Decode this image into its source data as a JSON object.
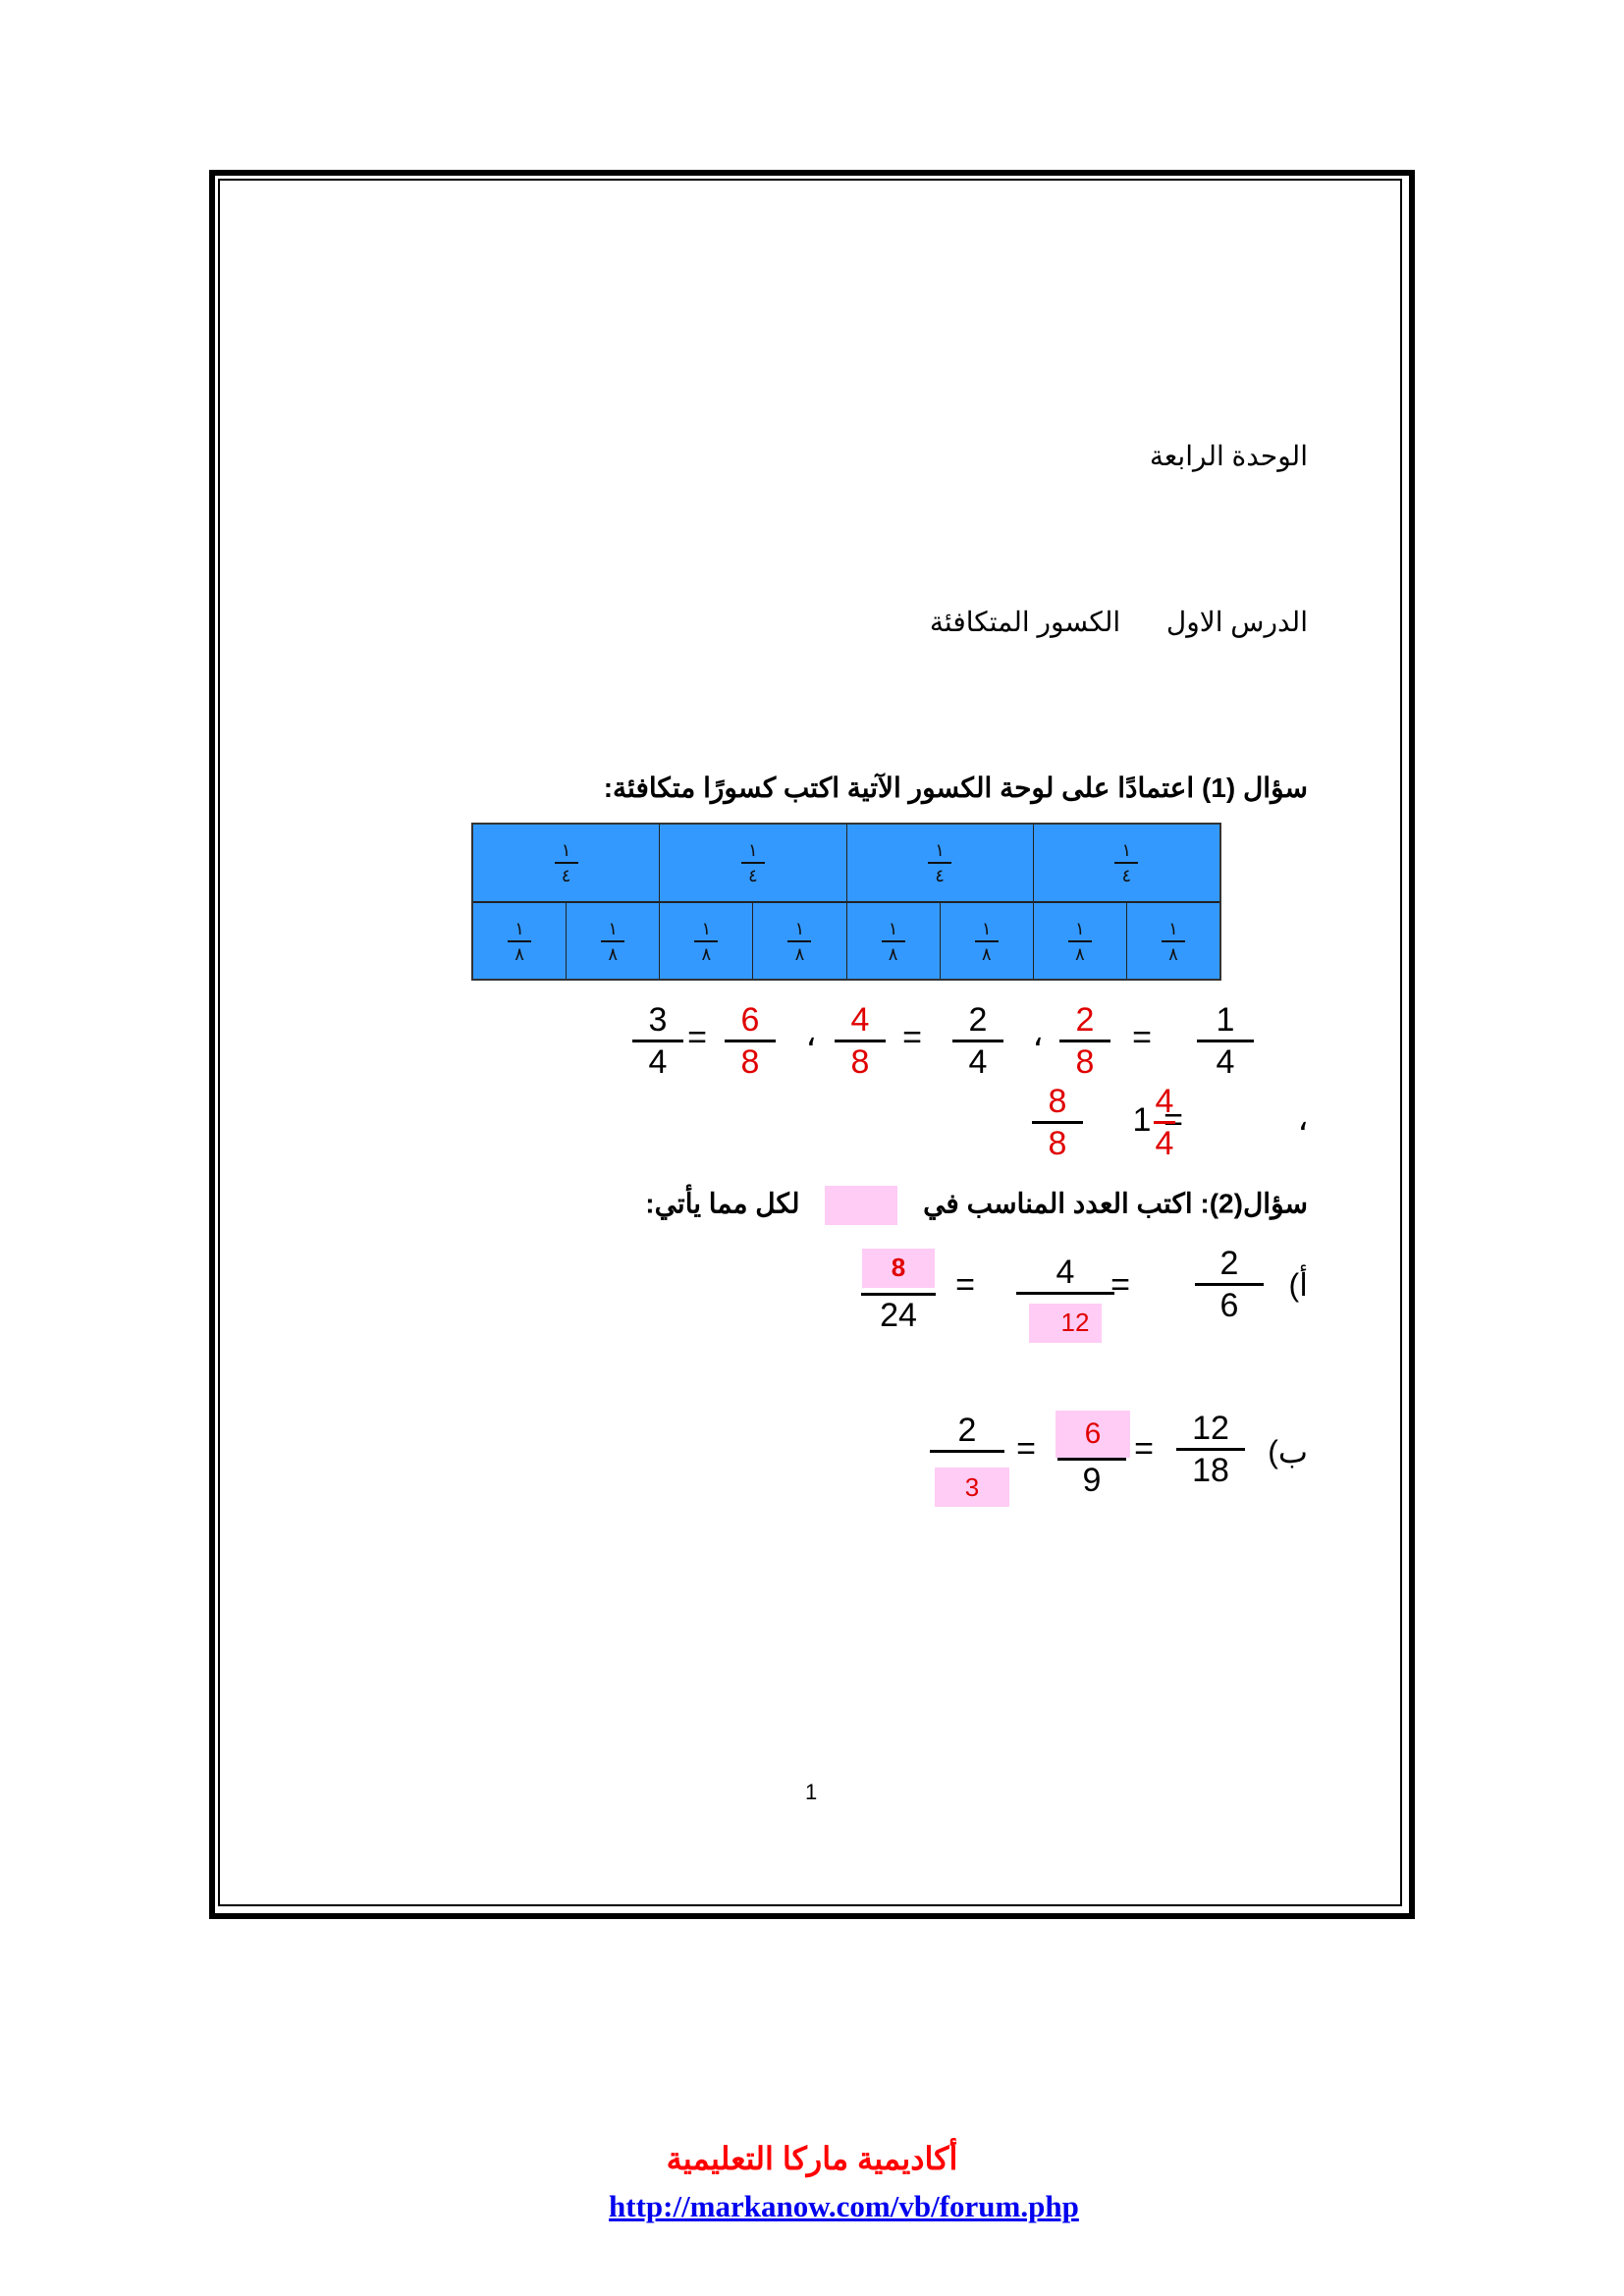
{
  "unit_title": "الوحدة الرابعة",
  "lesson": {
    "label": "الدرس الاول",
    "title": "الكسور المتكافئة"
  },
  "q1": {
    "label": "سؤال (1)",
    "text": "اعتمادًا على لوحة الكسور الآتية اكتب كسورًا متكافئة:",
    "board": {
      "quarter": {
        "num": "١",
        "den": "٤"
      },
      "eighth": {
        "num": "١",
        "den": "٨"
      },
      "color": "#3399ff"
    },
    "line1": [
      {
        "given": {
          "num": "1",
          "den": "4"
        },
        "answer": {
          "num": "2",
          "den": "8"
        }
      },
      {
        "given": {
          "num": "2",
          "den": "4"
        },
        "answer": {
          "num": "4",
          "den": "8"
        }
      },
      {
        "given": {
          "num": "3",
          "den": "4"
        },
        "answer": {
          "num": "6",
          "den": "8"
        }
      }
    ],
    "line2": {
      "given": "1",
      "answer1": {
        "num": "4",
        "den": "4"
      },
      "answer2": {
        "num": "8",
        "den": "8"
      }
    },
    "separator": "،",
    "equals": "="
  },
  "q2": {
    "label": "سؤال(2):",
    "text_before": "اكتب العدد المناسب في",
    "text_after": "لكل مما يأتي:",
    "a": {
      "label": "أ)",
      "f1": {
        "num": "2",
        "den": "6"
      },
      "f2": {
        "num": "4",
        "den": "12"
      },
      "f3": {
        "num": "8",
        "den": "24"
      }
    },
    "b": {
      "label": "ب)",
      "f1": {
        "num": "12",
        "den": "18"
      },
      "f2": {
        "num": "6",
        "den": "9"
      },
      "f3": {
        "num": "2",
        "den": "3"
      }
    },
    "answer_color": "#e00000",
    "box_color": "#ffccf5"
  },
  "page_number": "1",
  "footer": {
    "academy": "أكاديمية ماركا التعليمية",
    "link": "http://markanow.com/vb/forum.php"
  }
}
